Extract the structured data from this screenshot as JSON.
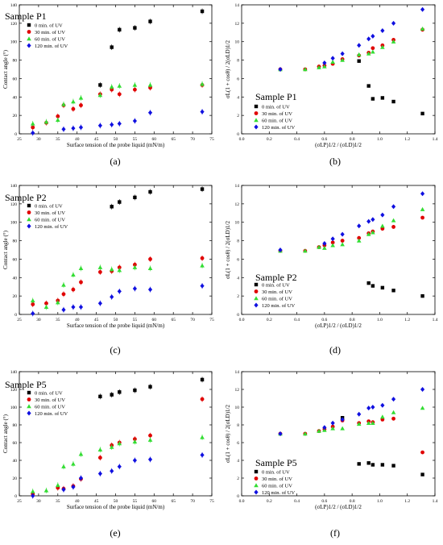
{
  "legend_labels": [
    "0 min. of UV",
    "30 min. of UV",
    "60 min. of UV",
    "120 min. of UV"
  ],
  "series_colors": [
    "#000000",
    "#e00000",
    "#33dd33",
    "#1010e0"
  ],
  "series_markers": [
    "square",
    "circle",
    "triangle",
    "diamond"
  ],
  "contact_axis": {
    "xlabel": "Surface tension of the probe liquid (mN/m)",
    "ylabel": "Contact angle (°)",
    "xlim": [
      25,
      75
    ],
    "ylim": [
      0,
      140
    ],
    "xticks": [
      "25",
      "30",
      "35",
      "40",
      "45",
      "50",
      "55",
      "60",
      "65",
      "70",
      "75"
    ],
    "yticks": [
      "0",
      "20",
      "40",
      "60",
      "80",
      "100",
      "120",
      "140"
    ]
  },
  "owrk_axis": {
    "xlabel": "(σLP)1/2 / (σLD)1/2",
    "ylabel": "σL(1 + cosθ) / 2(σLD)1/2",
    "xlim": [
      0.0,
      1.4
    ],
    "ylim": [
      0,
      14
    ],
    "xticks": [
      "0.0",
      "0.2",
      "0.4",
      "0.6",
      "0.8",
      "1.0",
      "1.2",
      "1.4"
    ],
    "yticks": [
      "0",
      "2",
      "4",
      "6",
      "8",
      "10",
      "12",
      "14"
    ]
  },
  "chart_data": [
    {
      "type": "scatter",
      "panel": "(a)",
      "title": "Sample P1",
      "x": [
        28.5,
        32.0,
        35.0,
        36.5,
        39.0,
        41.0,
        46.0,
        49.0,
        51.0,
        55.0,
        59.0,
        72.5
      ],
      "series": [
        {
          "name": "0 min. of UV",
          "values": [
            null,
            null,
            null,
            null,
            null,
            null,
            53,
            94,
            113,
            115,
            122,
            133
          ]
        },
        {
          "name": "30 min. of UV",
          "values": [
            7,
            12,
            19,
            31,
            27,
            31,
            43,
            48,
            43,
            48,
            50,
            53
          ]
        },
        {
          "name": "60 min. of UV",
          "values": [
            11,
            13,
            15,
            32,
            35,
            39,
            42,
            51,
            52,
            53,
            53,
            54
          ]
        },
        {
          "name": "120 min. of UV",
          "values": [
            1,
            null,
            null,
            5,
            6,
            7,
            9,
            10,
            11,
            14,
            23,
            24
          ]
        }
      ]
    },
    {
      "type": "scatter",
      "panel": "(b)",
      "title": "Sample P1",
      "x": [
        0.28,
        0.46,
        0.56,
        0.6,
        0.66,
        0.73,
        0.85,
        0.92,
        0.95,
        1.02,
        1.1,
        1.31
      ],
      "series": [
        {
          "name": "0 min. of UV",
          "values": [
            null,
            null,
            null,
            null,
            null,
            null,
            7.9,
            5.2,
            3.8,
            3.9,
            3.5,
            2.2
          ]
        },
        {
          "name": "30 min. of UV",
          "values": [
            7.0,
            7.0,
            7.3,
            7.4,
            7.6,
            8.1,
            8.5,
            8.8,
            9.3,
            9.6,
            10.2,
            11.3
          ]
        },
        {
          "name": "60 min. of UV",
          "values": [
            7.0,
            7.0,
            7.2,
            7.3,
            7.8,
            8.0,
            8.6,
            8.7,
            8.9,
            9.4,
            10.0,
            11.4
          ]
        },
        {
          "name": "120 min. of UV",
          "values": [
            7.0,
            null,
            null,
            7.7,
            8.2,
            8.7,
            9.6,
            10.3,
            10.6,
            11.2,
            12.0,
            13.5
          ]
        }
      ]
    },
    {
      "type": "scatter",
      "panel": "(c)",
      "title": "Sample P2",
      "x": [
        28.5,
        32.0,
        35.0,
        36.5,
        39.0,
        41.0,
        46.0,
        49.0,
        51.0,
        55.0,
        59.0,
        72.5
      ],
      "series": [
        {
          "name": "0 min. of UV",
          "values": [
            null,
            null,
            null,
            null,
            null,
            null,
            null,
            117,
            122,
            127,
            133,
            136
          ]
        },
        {
          "name": "30 min. of UV",
          "values": [
            11,
            12,
            15,
            22,
            27,
            35,
            46,
            47,
            51,
            54,
            60,
            61
          ]
        },
        {
          "name": "60 min. of UV",
          "values": [
            15,
            8,
            13,
            32,
            43,
            50,
            51,
            49,
            48,
            51,
            50,
            53
          ]
        },
        {
          "name": "120 min. of UV",
          "values": [
            1,
            null,
            null,
            5,
            8,
            8,
            12,
            19,
            25,
            28,
            27,
            31
          ]
        }
      ]
    },
    {
      "type": "scatter",
      "panel": "(d)",
      "title": "Sample P2",
      "x": [
        0.28,
        0.46,
        0.56,
        0.6,
        0.66,
        0.73,
        0.85,
        0.92,
        0.95,
        1.02,
        1.1,
        1.31
      ],
      "series": [
        {
          "name": "0 min. of UV",
          "values": [
            null,
            null,
            null,
            null,
            null,
            null,
            null,
            3.4,
            3.1,
            2.9,
            2.6,
            2.0
          ]
        },
        {
          "name": "30 min. of UV",
          "values": [
            6.9,
            6.9,
            7.3,
            7.5,
            7.8,
            8.0,
            8.3,
            8.8,
            9.0,
            9.3,
            9.5,
            10.5
          ]
        },
        {
          "name": "60 min. of UV",
          "values": [
            6.9,
            6.9,
            7.3,
            7.2,
            7.5,
            7.6,
            8.0,
            8.7,
            8.9,
            9.6,
            10.2,
            11.4
          ]
        },
        {
          "name": "120 min. of UV",
          "values": [
            7.0,
            null,
            null,
            7.7,
            8.2,
            8.7,
            9.6,
            10.1,
            10.3,
            10.8,
            11.7,
            13.1
          ]
        }
      ]
    },
    {
      "type": "scatter",
      "panel": "(e)",
      "title": "Sample P5",
      "x": [
        28.5,
        32.0,
        35.0,
        36.5,
        39.0,
        41.0,
        46.0,
        49.0,
        51.0,
        55.0,
        59.0,
        72.5
      ],
      "series": [
        {
          "name": "0 min. of UV",
          "values": [
            null,
            null,
            null,
            null,
            null,
            null,
            112,
            114,
            117,
            119,
            123,
            131
          ]
        },
        {
          "name": "30 min. of UV",
          "values": [
            2,
            null,
            9,
            8,
            11,
            19,
            43,
            57,
            60,
            64,
            68,
            109
          ]
        },
        {
          "name": "60 min. of UV",
          "values": [
            5,
            6,
            12,
            33,
            36,
            47,
            52,
            55,
            59,
            61,
            63,
            66
          ]
        },
        {
          "name": "120 min. of UV",
          "values": [
            0,
            null,
            null,
            7,
            10,
            20,
            25,
            28,
            33,
            40,
            41,
            46
          ]
        }
      ]
    },
    {
      "type": "scatter",
      "panel": "(f)",
      "title": "Sample P5",
      "x": [
        0.28,
        0.46,
        0.56,
        0.6,
        0.66,
        0.73,
        0.85,
        0.92,
        0.95,
        1.02,
        1.1,
        1.31
      ],
      "series": [
        {
          "name": "0 min. of UV",
          "values": [
            null,
            null,
            null,
            null,
            null,
            8.8,
            3.6,
            3.7,
            3.5,
            3.5,
            3.4,
            2.4
          ]
        },
        {
          "name": "30 min. of UV",
          "values": [
            7.0,
            7.0,
            7.3,
            7.5,
            7.8,
            8.5,
            8.2,
            8.4,
            8.3,
            8.6,
            8.7,
            4.9
          ]
        },
        {
          "name": "60 min. of UV",
          "values": [
            7.0,
            7.0,
            7.3,
            7.4,
            7.6,
            7.6,
            8.1,
            8.2,
            8.2,
            8.9,
            9.4,
            9.9
          ]
        },
        {
          "name": "120 min. of UV",
          "values": [
            7.0,
            null,
            null,
            7.7,
            8.2,
            8.6,
            9.2,
            9.9,
            10.0,
            10.2,
            10.9,
            12.0
          ]
        }
      ]
    }
  ]
}
